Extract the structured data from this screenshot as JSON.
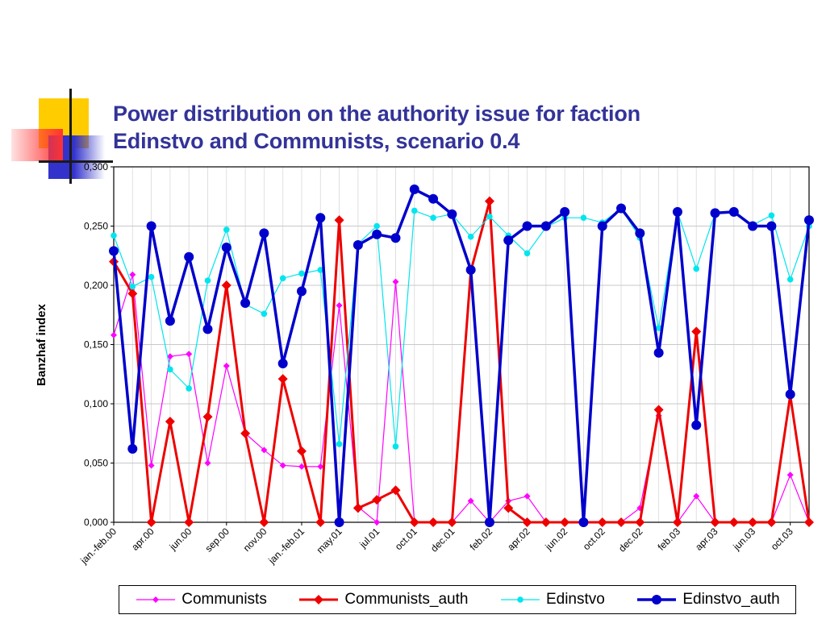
{
  "title_lines": [
    "Power distribution on the authority issue for faction",
    "Edinstvo and Communists, scenario 0.4"
  ],
  "colors": {
    "title": "#333399",
    "deco_yellow": "#FFCC00",
    "deco_red": "#FF3333",
    "deco_blue": "#3333CC"
  },
  "chart_data": {
    "type": "line",
    "title": "",
    "xlabel": "",
    "ylabel": "Banzhaf index",
    "ylim": [
      0,
      0.3
    ],
    "yticks": [
      "0,000",
      "0,050",
      "0,100",
      "0,150",
      "0,200",
      "0,250",
      "0,300"
    ],
    "grid": true,
    "legend_position": "bottom",
    "x_tick_labels": [
      "jan.-feb.00",
      "apr.00",
      "jun.00",
      "sep.00",
      "nov.00",
      "jan.-feb.01",
      "may.01",
      "jul.01",
      "oct.01",
      "dec.01",
      "feb.02",
      "apr.02",
      "jun.02",
      "oct.02",
      "dec.02",
      "feb.03",
      "apr.03",
      "jun.03",
      "oct.03"
    ],
    "series": [
      {
        "name": "Communists",
        "color": "#FF00FF",
        "marker": "diamond",
        "width": 1.2,
        "values": [
          0.158,
          0.209,
          0.048,
          0.14,
          0.142,
          0.05,
          0.132,
          0.075,
          0.061,
          0.048,
          0.047,
          0.047,
          0.183,
          0.013,
          0.0,
          0.203,
          0.0,
          0.0,
          0.0,
          0.018,
          0.0,
          0.018,
          0.022,
          0.0,
          0.0,
          0.0,
          0.0,
          0.0,
          0.012,
          0.09,
          0.0,
          0.022,
          0.0,
          0.0,
          0.0,
          0.0,
          0.04,
          0.0
        ]
      },
      {
        "name": "Communists_auth",
        "color": "#EE0000",
        "marker": "diamond",
        "width": 3,
        "values": [
          0.22,
          0.193,
          0.0,
          0.085,
          0.0,
          0.089,
          0.2,
          0.075,
          0.0,
          0.121,
          0.06,
          0.0,
          0.255,
          0.012,
          0.019,
          0.027,
          0.0,
          0.0,
          0.0,
          0.212,
          0.271,
          0.012,
          0.0,
          0.0,
          0.0,
          0.0,
          0.0,
          0.0,
          0.0,
          0.095,
          0.0,
          0.161,
          0.0,
          0.0,
          0.0,
          0.0,
          0.107,
          0.0
        ]
      },
      {
        "name": "Edinstvo",
        "color": "#00E5EE",
        "marker": "circle",
        "width": 1.2,
        "values": [
          0.242,
          0.199,
          0.207,
          0.129,
          0.113,
          0.204,
          0.247,
          0.184,
          0.176,
          0.206,
          0.21,
          0.213,
          0.066,
          0.235,
          0.25,
          0.064,
          0.263,
          0.257,
          0.26,
          0.241,
          0.258,
          0.242,
          0.227,
          0.249,
          0.257,
          0.257,
          0.253,
          0.265,
          0.24,
          0.164,
          0.262,
          0.214,
          0.261,
          0.262,
          0.251,
          0.259,
          0.205,
          0.25
        ]
      },
      {
        "name": "Edinstvo_auth",
        "color": "#0000CC",
        "marker": "circle",
        "width": 3.5,
        "values": [
          0.229,
          0.062,
          0.25,
          0.17,
          0.224,
          0.163,
          0.232,
          0.185,
          0.244,
          0.134,
          0.195,
          0.257,
          0.0,
          0.234,
          0.243,
          0.24,
          0.281,
          0.273,
          0.26,
          0.213,
          0.0,
          0.238,
          0.25,
          0.25,
          0.262,
          0.0,
          0.25,
          0.265,
          0.244,
          0.143,
          0.262,
          0.082,
          0.261,
          0.262,
          0.25,
          0.25,
          0.108,
          0.255
        ]
      }
    ]
  }
}
